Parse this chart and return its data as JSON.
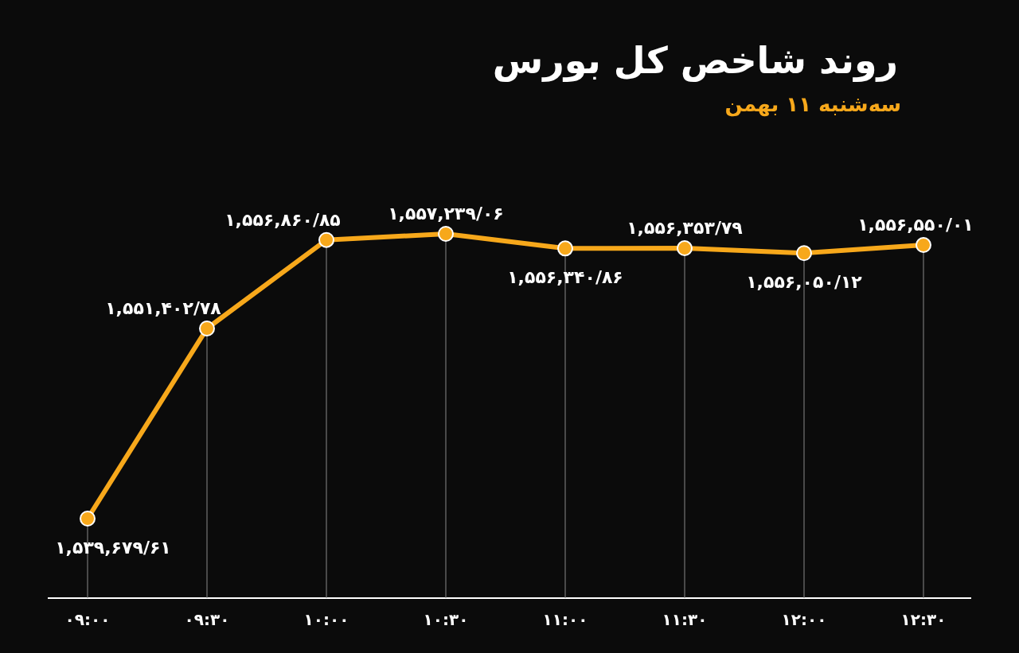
{
  "chart_data": {
    "type": "line",
    "title": "روند شاخص کل بورس",
    "subtitle": "سه‌شنبه ۱۱ بهمن",
    "categories": [
      "۰۹:۰۰",
      "۰۹:۳۰",
      "۱۰:۰۰",
      "۱۰:۳۰",
      "۱۱:۰۰",
      "۱۱:۳۰",
      "۱۲:۰۰",
      "۱۲:۳۰"
    ],
    "series": [
      {
        "color": "#f7a81b",
        "values": [
          1539679.61,
          1551402.78,
          1556860.85,
          1557239.06,
          1556340.86,
          1556353.79,
          1556050.12,
          1556550.01
        ],
        "value_labels": [
          "۱,۵۳۹,۶۷۹/۶۱",
          "۱,۵۵۱,۴۰۲/۷۸",
          "۱,۵۵۶,۸۶۰/۸۵",
          "۱,۵۵۷,۲۳۹/۰۶",
          "۱,۵۵۶,۳۴۰/۸۶",
          "۱,۵۵۶,۳۵۳/۷۹",
          "۱,۵۵۶,۰۵۰/۱۲",
          "۱,۵۵۶,۵۵۰/۰۱"
        ]
      }
    ],
    "marker": "circle",
    "grid": "x"
  }
}
